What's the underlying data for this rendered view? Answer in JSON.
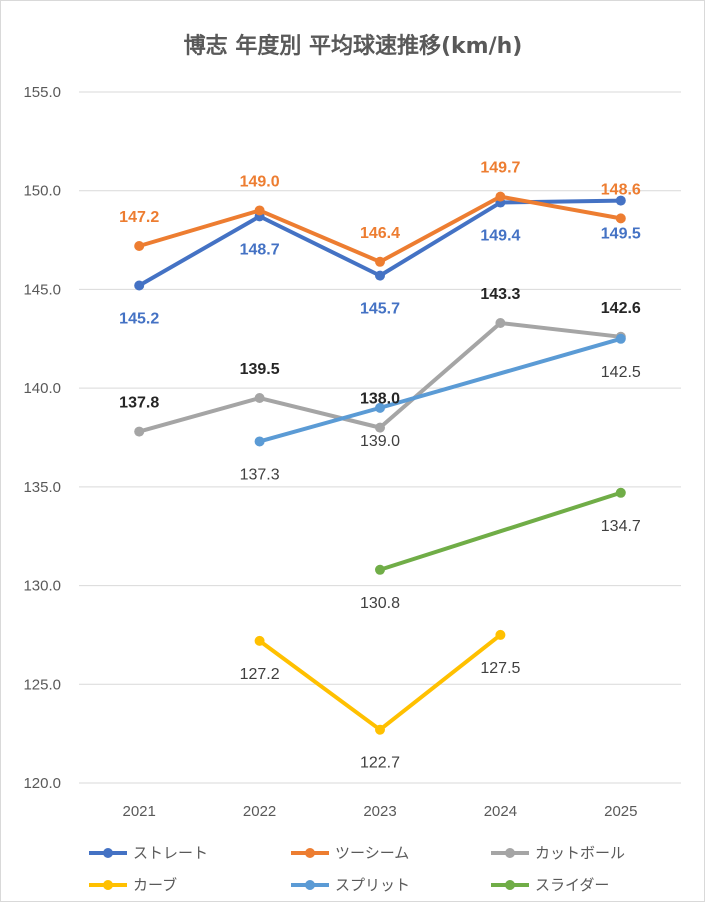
{
  "chart_data": {
    "type": "line",
    "title": "博志 年度別 平均球速推移(km/h)",
    "xlabel": "",
    "ylabel": "",
    "categories": [
      "2021",
      "2022",
      "2023",
      "2024",
      "2025"
    ],
    "ylim": [
      120,
      155
    ],
    "yticks": [
      "155.0",
      "150.0",
      "145.0",
      "140.0",
      "135.0",
      "130.0",
      "125.0",
      "120.0"
    ],
    "ytick_values": [
      155,
      150,
      145,
      140,
      135,
      130,
      125,
      120
    ],
    "grid": true,
    "legend_position": "bottom",
    "series": [
      {
        "name": "ストレート",
        "color": "#4472c4",
        "values": [
          145.2,
          148.7,
          145.7,
          149.4,
          149.5
        ],
        "labels": [
          "145.2",
          "148.7",
          "145.7",
          "149.4",
          "149.5"
        ],
        "label_pos": [
          "below",
          "below",
          "below",
          "below",
          "below"
        ],
        "bold": true,
        "label_color": "#4472c4"
      },
      {
        "name": "ツーシーム",
        "color": "#ed7d31",
        "values": [
          147.2,
          149.0,
          146.4,
          149.7,
          148.6
        ],
        "labels": [
          "147.2",
          "149.0",
          "146.4",
          "149.7",
          "148.6"
        ],
        "label_pos": [
          "above",
          "above",
          "above",
          "above",
          "above"
        ],
        "bold": true,
        "label_color": "#ed7d31"
      },
      {
        "name": "カットボール",
        "color": "#a5a5a5",
        "values": [
          137.8,
          139.5,
          138.0,
          143.3,
          142.6
        ],
        "labels": [
          "137.8",
          "139.5",
          "138.0",
          "143.3",
          "142.6"
        ],
        "label_pos": [
          "above",
          "above",
          "above",
          "above",
          "above"
        ],
        "bold": true,
        "label_color": "#262626"
      },
      {
        "name": "カーブ",
        "color": "#ffc000",
        "values": [
          null,
          127.2,
          122.7,
          127.5,
          null
        ],
        "labels": [
          "",
          "127.2",
          "122.7",
          "127.5",
          ""
        ],
        "label_pos": [
          "below",
          "below",
          "below",
          "below",
          "below"
        ],
        "bold": false,
        "label_color": "#404040"
      },
      {
        "name": "スプリット",
        "color": "#5b9bd5",
        "values": [
          null,
          137.3,
          139.0,
          null,
          142.5
        ],
        "labels": [
          "",
          "137.3",
          "139.0",
          "",
          "142.5"
        ],
        "label_pos": [
          "below",
          "below",
          "below",
          "below",
          "below"
        ],
        "bold": false,
        "label_color": "#404040"
      },
      {
        "name": "スライダー",
        "color": "#70ad47",
        "values": [
          null,
          null,
          130.8,
          null,
          134.7
        ],
        "labels": [
          "",
          "",
          "130.8",
          "",
          "134.7"
        ],
        "label_pos": [
          "below",
          "below",
          "below",
          "below",
          "below"
        ],
        "bold": false,
        "label_color": "#404040"
      }
    ]
  }
}
